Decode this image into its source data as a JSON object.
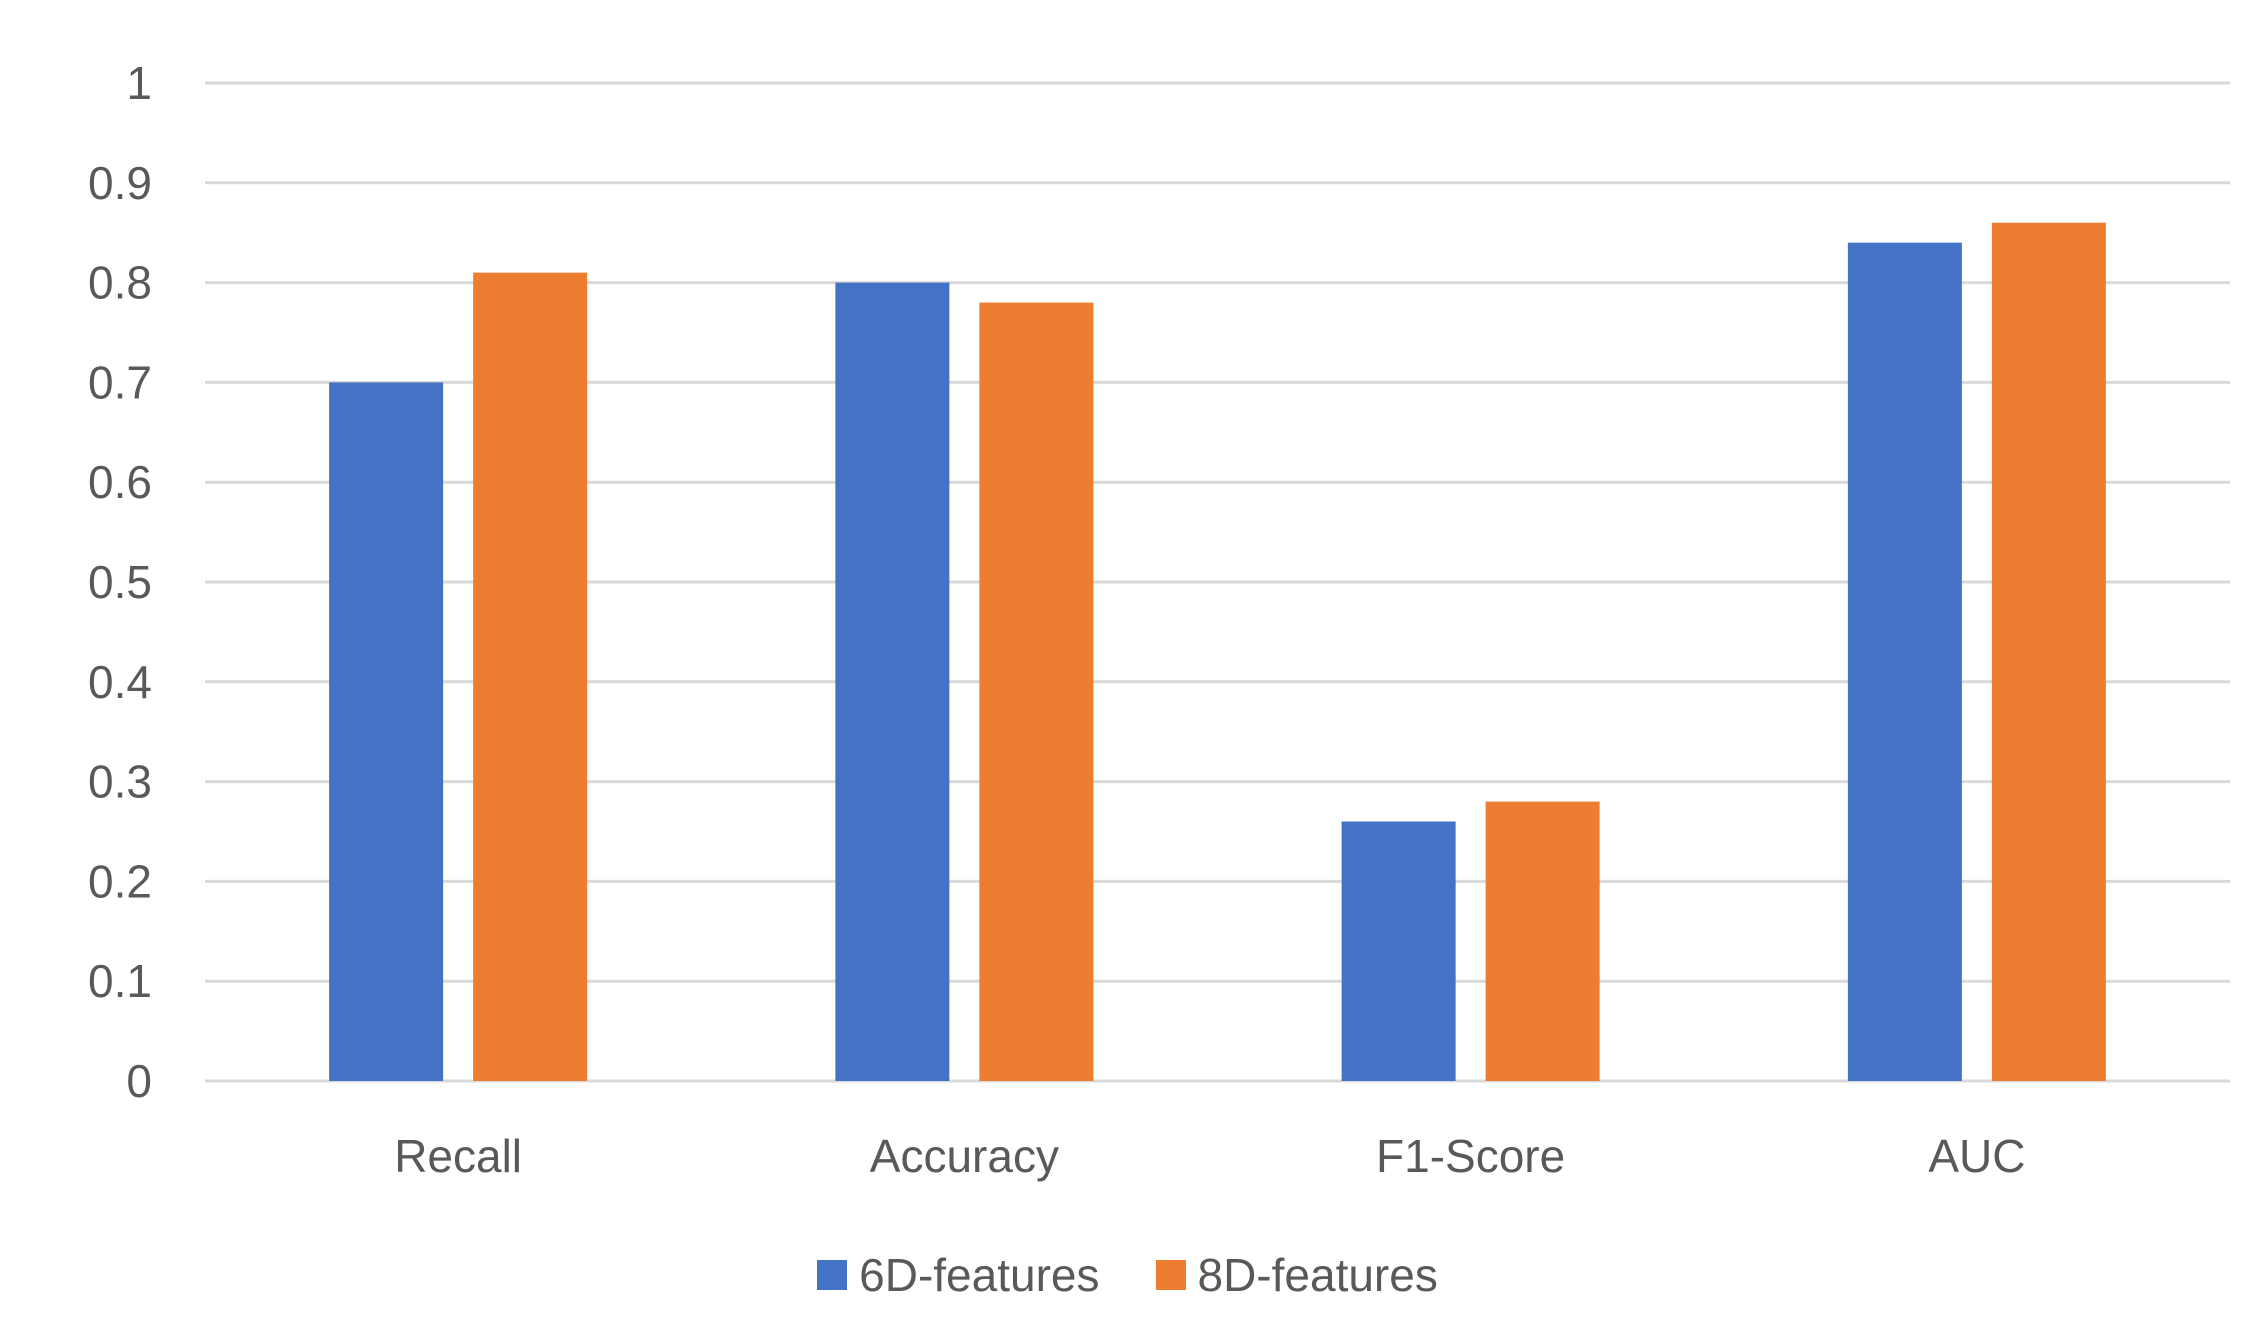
{
  "chart_data": {
    "type": "bar",
    "title": "",
    "xlabel": "",
    "ylabel": "",
    "categories": [
      "Recall",
      "Accuracy",
      "F1-Score",
      "AUC"
    ],
    "series": [
      {
        "name": "6D-features",
        "color": "#4472C4",
        "values": [
          0.7,
          0.8,
          0.26,
          0.84
        ]
      },
      {
        "name": "8D-features",
        "color": "#ED7D31",
        "values": [
          0.81,
          0.78,
          0.28,
          0.86
        ]
      }
    ],
    "ylim": [
      0,
      1
    ],
    "yticks": [
      "0",
      "0.1",
      "0.2",
      "0.3",
      "0.4",
      "0.5",
      "0.6",
      "0.7",
      "0.8",
      "0.9",
      "1"
    ],
    "grid": true,
    "gridline_color": "#D9D9D9",
    "legend_position": "bottom"
  }
}
